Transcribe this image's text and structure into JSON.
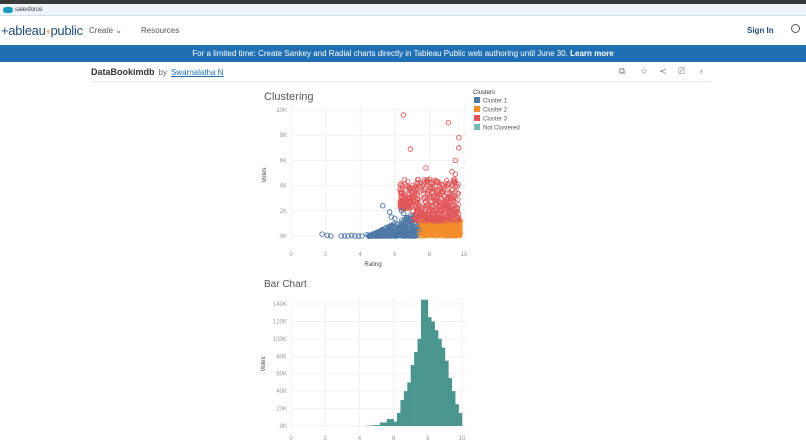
{
  "salesforce": {
    "label": "salesforce"
  },
  "nav": {
    "logo": "+ableau",
    "logo_dots": "+",
    "logo_tail": "public",
    "create": "Create",
    "resources": "Resources",
    "sign_in": "Sign In"
  },
  "banner": {
    "text": "For a limited time: Create Sankey and Radial charts directly in Tableau Public web authoring until June 30.",
    "link": "Learn more"
  },
  "workbook": {
    "title": "DataBookimdb",
    "by": "by",
    "author": "Swarnalatha N",
    "toolbar_icons": [
      "copy-icon",
      "star-icon",
      "share-icon",
      "download-icon",
      "badge-icon"
    ]
  },
  "chart_data": [
    {
      "type": "scatter",
      "title": "Clustering",
      "xlabel": "Rating",
      "ylabel": "Votes",
      "xlim": [
        0,
        10
      ],
      "ylim": [
        0,
        10000
      ],
      "x_ticks": [
        "0",
        "2",
        "4",
        "6",
        "8",
        "10"
      ],
      "y_ticks": [
        "0K",
        "2K",
        "4K",
        "6K",
        "8K",
        "10K"
      ],
      "legend": {
        "title": "Clusters",
        "placement": "right",
        "entries": [
          {
            "name": "Cluster 1",
            "color": "#4e79a7"
          },
          {
            "name": "Cluster 2",
            "color": "#f28e2b"
          },
          {
            "name": "Cluster 3",
            "color": "#e15759"
          },
          {
            "name": "Not Clustered",
            "color": "#76b7b2"
          }
        ]
      },
      "series": [
        {
          "name": "Cluster 1",
          "points": [
            [
              1.8,
              150
            ],
            [
              2.1,
              50
            ],
            [
              2.3,
              0
            ],
            [
              2.9,
              0
            ],
            [
              3.1,
              0
            ],
            [
              3.3,
              0
            ],
            [
              3.5,
              50
            ],
            [
              3.7,
              0
            ],
            [
              3.9,
              0
            ],
            [
              4.1,
              0
            ],
            [
              4.4,
              100
            ],
            [
              4.7,
              150
            ],
            [
              5.0,
              200
            ],
            [
              5.3,
              2400
            ],
            [
              5.7,
              1900
            ],
            [
              5.8,
              1500
            ],
            [
              5.9,
              800
            ],
            [
              6.0,
              1400
            ],
            [
              6.2,
              900
            ],
            [
              6.4,
              2000
            ],
            [
              6.5,
              1800
            ],
            [
              6.8,
              1400
            ],
            [
              7.0,
              1000
            ]
          ]
        },
        {
          "name": "Cluster 2",
          "points": [
            [
              7.6,
              1100
            ],
            [
              8.0,
              900
            ],
            [
              8.5,
              600
            ],
            [
              9.0,
              1000
            ],
            [
              9.3,
              500
            ],
            [
              9.5,
              1200
            ],
            [
              9.6,
              100
            ],
            [
              9.7,
              100
            ]
          ]
        },
        {
          "name": "Cluster 3",
          "points": [
            [
              6.5,
              9600
            ],
            [
              9.1,
              9000
            ],
            [
              9.7,
              7800
            ],
            [
              9.7,
              7000
            ],
            [
              6.9,
              6900
            ],
            [
              9.5,
              6000
            ],
            [
              7.8,
              5400
            ],
            [
              9.3,
              5100
            ],
            [
              9.5,
              4900
            ],
            [
              6.3,
              3700
            ],
            [
              6.4,
              3400
            ],
            [
              6.6,
              4100
            ],
            [
              9.5,
              3500
            ],
            [
              8.0,
              4500
            ],
            [
              8.5,
              4300
            ],
            [
              7.3,
              4200
            ]
          ]
        }
      ]
    },
    {
      "type": "bar",
      "title": "Bar Chart",
      "xlabel": "",
      "ylabel": "Votes",
      "xlim": [
        0,
        10
      ],
      "ylim": [
        0,
        150000
      ],
      "x_ticks": [
        "0",
        "2",
        "4",
        "6",
        "8",
        "10"
      ],
      "y_ticks": [
        "0K",
        "20K",
        "40K",
        "60K",
        "80K",
        "100K",
        "120K",
        "140K"
      ],
      "color": "#4a968f",
      "bins": [
        4.4,
        4.6,
        4.8,
        5.0,
        5.2,
        5.4,
        5.6,
        5.8,
        6.0,
        6.2,
        6.4,
        6.6,
        6.8,
        7.0,
        7.2,
        7.4,
        7.6,
        7.8,
        8.0,
        8.2,
        8.4,
        8.6,
        8.8,
        9.0,
        9.2,
        9.4,
        9.6,
        9.8
      ],
      "values": [
        500,
        500,
        1000,
        1000,
        4000,
        4000,
        8000,
        8000,
        5000,
        15000,
        30000,
        40000,
        50000,
        70000,
        85000,
        100000,
        145000,
        145000,
        125000,
        120000,
        110000,
        100000,
        90000,
        75000,
        55000,
        40000,
        25000,
        15000
      ]
    }
  ]
}
